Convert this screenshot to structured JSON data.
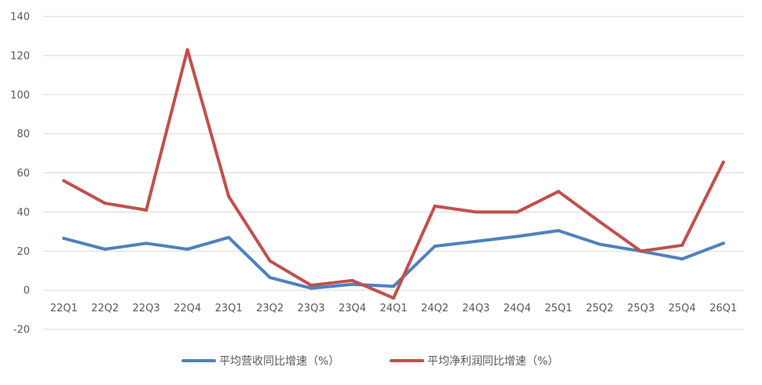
{
  "chart_data": {
    "type": "line",
    "categories": [
      "22Q1",
      "22Q2",
      "22Q3",
      "22Q4",
      "23Q1",
      "23Q2",
      "23Q3",
      "23Q4",
      "24Q1",
      "24Q2",
      "24Q3",
      "24Q4",
      "25Q1",
      "25Q2",
      "25Q3",
      "25Q4",
      "26Q1"
    ],
    "series": [
      {
        "name": "平均营收同比增速（%）",
        "color": "#4f81bd",
        "values": [
          26.5,
          21,
          24,
          21,
          27,
          6.5,
          1,
          3,
          2,
          22.5,
          25,
          27.5,
          30.5,
          23.5,
          20,
          16,
          24
        ]
      },
      {
        "name": "平均净利润同比增速（%）",
        "color": "#c0504d",
        "values": [
          56,
          44.5,
          41,
          123,
          48,
          15,
          2.5,
          5,
          -4,
          43,
          40,
          40,
          50.5,
          35,
          20,
          23,
          65.5
        ]
      }
    ],
    "yticks": [
      "-20",
      "0",
      "20",
      "40",
      "60",
      "80",
      "100",
      "120",
      "140"
    ],
    "ylim": [
      -20,
      140
    ],
    "title": "",
    "xlabel": "",
    "ylabel": "",
    "grid": true,
    "legend_position": "bottom"
  }
}
